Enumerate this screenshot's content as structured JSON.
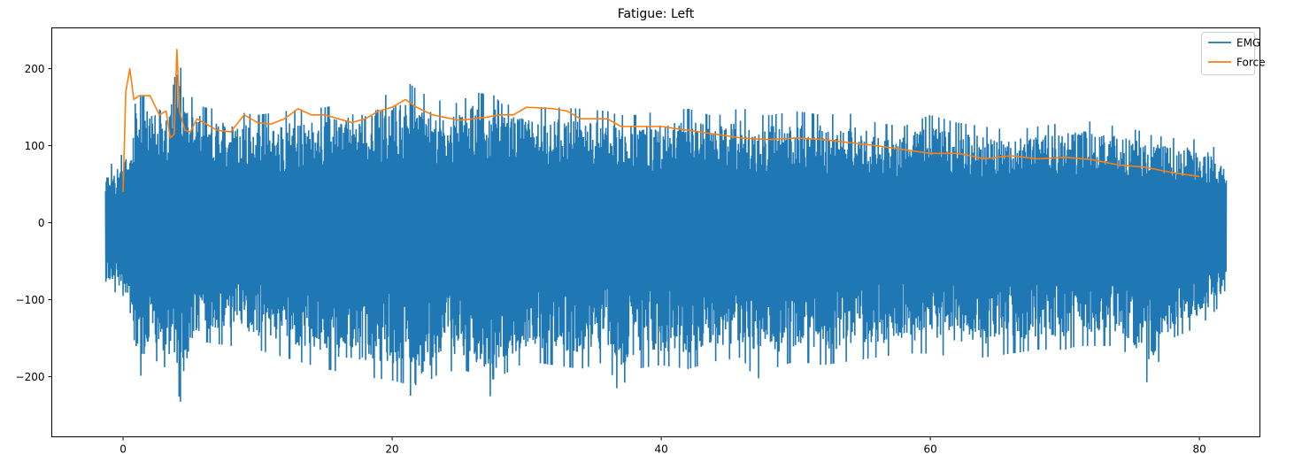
{
  "chart_data": {
    "type": "line",
    "title": "Fatigue: Left",
    "xlabel": "",
    "ylabel": "",
    "xlim": [
      -5.3,
      84.5
    ],
    "ylim": [
      -278,
      253
    ],
    "xticks": [
      0,
      20,
      40,
      60,
      80
    ],
    "yticks": [
      -200,
      -100,
      0,
      100,
      200
    ],
    "xtick_labels": [
      "0",
      "20",
      "40",
      "60",
      "80"
    ],
    "ytick_labels": [
      "−200",
      "−100",
      "0",
      "100",
      "200"
    ],
    "grid": false,
    "legend": {
      "position": "top-right",
      "entries": [
        "EMG",
        "Force"
      ]
    },
    "series": [
      {
        "name": "EMG",
        "color": "#1f77b4",
        "style": "dense-oscillation",
        "x_range": [
          -1.3,
          82.0
        ],
        "envelope": {
          "x": [
            -1.3,
            0,
            0.5,
            1,
            2,
            3,
            4,
            4.3,
            5,
            6,
            8,
            10,
            12,
            15,
            18,
            20,
            21.2,
            21.7,
            23,
            25,
            26,
            27.7,
            28,
            30,
            32,
            34,
            36,
            36.8,
            38,
            40,
            42,
            44,
            46,
            47,
            48.2,
            50,
            52,
            54,
            56,
            58,
            60,
            62,
            64,
            66,
            68,
            70,
            71,
            72,
            74,
            75.5,
            76,
            78,
            80,
            82
          ],
          "upper": [
            70,
            90,
            110,
            165,
            165,
            140,
            228,
            200,
            165,
            150,
            145,
            140,
            145,
            150,
            160,
            168,
            182,
            175,
            160,
            155,
            170,
            165,
            155,
            150,
            150,
            148,
            145,
            140,
            140,
            145,
            148,
            138,
            150,
            140,
            140,
            145,
            140,
            142,
            130,
            125,
            140,
            130,
            125,
            120,
            125,
            130,
            140,
            130,
            125,
            120,
            115,
            110,
            108,
            90
          ],
          "lower": [
            -85,
            -95,
            -110,
            -210,
            -175,
            -185,
            -215,
            -235,
            -180,
            -155,
            -160,
            -165,
            -175,
            -190,
            -200,
            -205,
            -210,
            -255,
            -200,
            -190,
            -195,
            -235,
            -200,
            -180,
            -185,
            -190,
            -180,
            -220,
            -190,
            -185,
            -190,
            -180,
            -175,
            -205,
            -190,
            -180,
            -185,
            -180,
            -175,
            -170,
            -170,
            -175,
            -175,
            -170,
            -165,
            -165,
            -160,
            -160,
            -160,
            -185,
            -210,
            -150,
            -135,
            -100
          ]
        }
      },
      {
        "name": "Force",
        "color": "#ff7f0e",
        "x": [
          0,
          0.2,
          0.5,
          0.8,
          1.2,
          2.0,
          2.7,
          3.2,
          3.5,
          3.8,
          4.0,
          4.2,
          4.6,
          5.0,
          5.5,
          6.0,
          7.0,
          8.0,
          9.0,
          10.0,
          11.0,
          12.0,
          13.0,
          14.0,
          15.0,
          16.0,
          17.0,
          18.0,
          19.0,
          20.0,
          21.0,
          21.8,
          23.0,
          25.0,
          27.0,
          28.0,
          29.0,
          30.0,
          32.0,
          33.0,
          34.0,
          36.0,
          37.0,
          40.0,
          42.0,
          44.0,
          46.0,
          48.0,
          50.0,
          52.0,
          54.0,
          56.0,
          58.0,
          60.0,
          62.0,
          63.0,
          64.0,
          66.0,
          68.0,
          70.0,
          72.0,
          74.0,
          76.0,
          78.0,
          80.0
        ],
        "values": [
          40,
          170,
          200,
          160,
          165,
          165,
          140,
          145,
          110,
          115,
          225,
          145,
          120,
          118,
          135,
          130,
          120,
          118,
          140,
          130,
          128,
          135,
          148,
          140,
          140,
          135,
          130,
          135,
          145,
          150,
          160,
          150,
          140,
          133,
          137,
          140,
          140,
          150,
          148,
          145,
          135,
          135,
          125,
          125,
          120,
          115,
          110,
          108,
          110,
          108,
          104,
          100,
          95,
          90,
          90,
          87,
          83,
          87,
          83,
          85,
          82,
          75,
          72,
          65,
          60
        ]
      }
    ]
  }
}
